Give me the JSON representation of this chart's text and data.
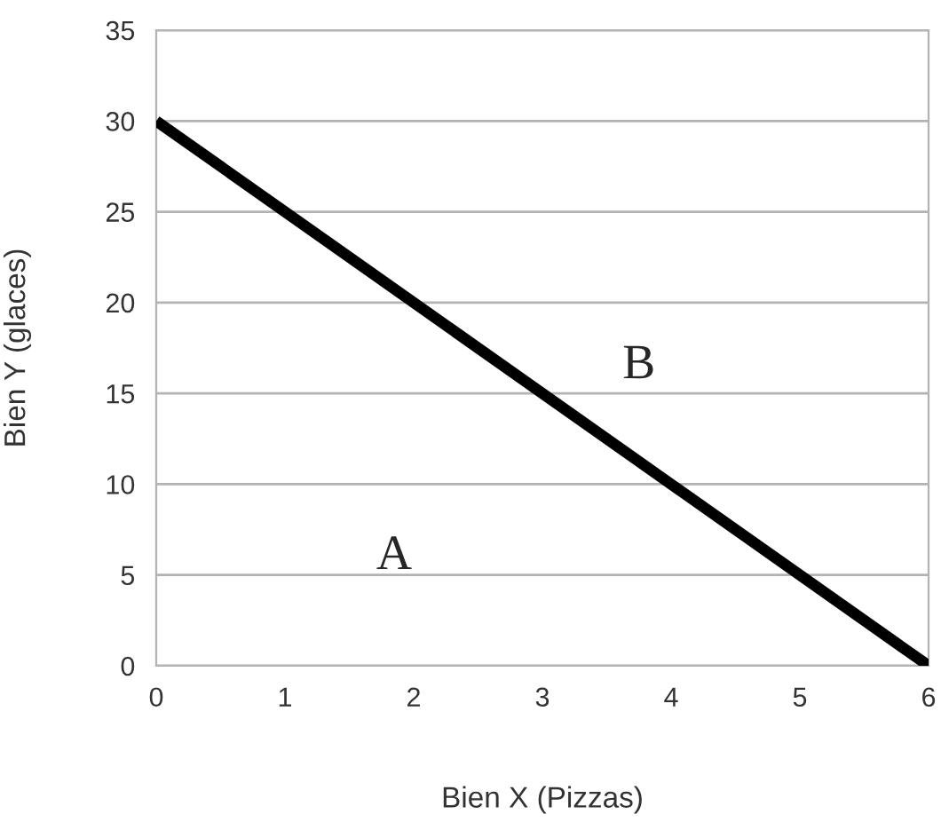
{
  "chart_data": {
    "type": "line",
    "xlabel": "Bien X (Pizzas)",
    "ylabel": "Bien Y (glaces)",
    "x": [
      0,
      6
    ],
    "series": [
      {
        "color": "#000000",
        "values": [
          30,
          0
        ]
      }
    ],
    "xlim": [
      0,
      6
    ],
    "xticks": [
      0,
      1,
      2,
      3,
      4,
      5,
      6
    ],
    "ylim": [
      0,
      35
    ],
    "yticks": [
      0,
      5,
      10,
      15,
      20,
      25,
      30,
      35
    ],
    "grid": "y",
    "marker": "none",
    "line_style": "solid",
    "legend": false,
    "annotations": [
      "A",
      "B"
    ]
  }
}
